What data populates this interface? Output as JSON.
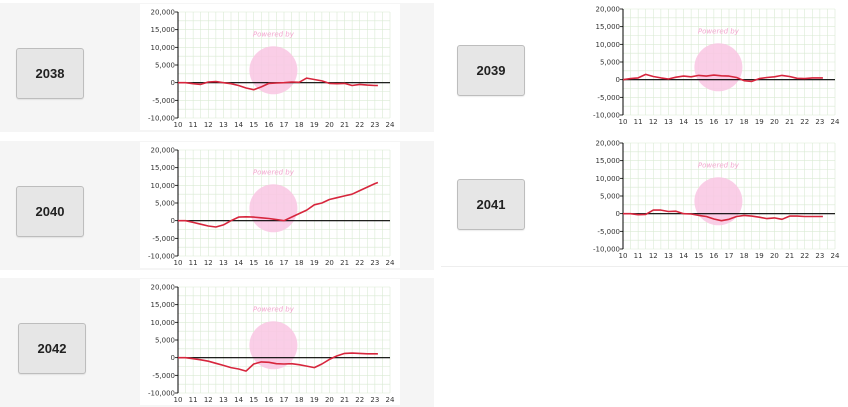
{
  "colors": {
    "line": "#d7263d",
    "grid": "#d9ead3",
    "zero_line": "#000000",
    "watermark": "#f9c6e3"
  },
  "watermark_text": "Powered by",
  "charts": [
    {
      "label": "2038",
      "chart_data": {
        "type": "line",
        "x": [
          10,
          10.5,
          11,
          11.5,
          12,
          12.5,
          13,
          13.5,
          14,
          14.5,
          15,
          15.5,
          16,
          16.5,
          17,
          17.5,
          18,
          18.5,
          19,
          19.5,
          20,
          20.5,
          21,
          21.5,
          22,
          22.5,
          23,
          23.2
        ],
        "values": [
          0,
          0,
          -300,
          -500,
          200,
          300,
          0,
          -300,
          -800,
          -1500,
          -2000,
          -1200,
          -200,
          -100,
          0,
          200,
          100,
          1300,
          900,
          500,
          -200,
          -300,
          -200,
          -800,
          -500,
          -700,
          -800,
          -800
        ],
        "xlim": [
          10,
          24
        ],
        "ylim": [
          -10000,
          20000
        ],
        "xticks": [
          "10",
          "11",
          "12",
          "13",
          "14",
          "15",
          "16",
          "17",
          "18",
          "19",
          "20",
          "21",
          "22",
          "23",
          "24"
        ],
        "yticks": [
          "20,000",
          "15,000",
          "10,000",
          "5,000",
          "0",
          "-5,000",
          "-10,000"
        ]
      }
    },
    {
      "label": "2039",
      "chart_data": {
        "type": "line",
        "x": [
          10,
          10.5,
          11,
          11.5,
          12,
          12.5,
          13,
          13.5,
          14,
          14.5,
          15,
          15.5,
          16,
          16.5,
          17,
          17.5,
          18,
          18.5,
          19,
          19.5,
          20,
          20.5,
          21,
          21.5,
          22,
          22.5,
          23,
          23.2
        ],
        "values": [
          0,
          300,
          500,
          1500,
          900,
          500,
          200,
          700,
          1000,
          800,
          1200,
          1000,
          1300,
          1100,
          1000,
          600,
          -300,
          -500,
          300,
          600,
          800,
          1200,
          900,
          400,
          300,
          500,
          500,
          500
        ],
        "xlim": [
          10,
          24
        ],
        "ylim": [
          -10000,
          20000
        ],
        "xticks": [
          "10",
          "11",
          "12",
          "13",
          "14",
          "15",
          "16",
          "17",
          "18",
          "19",
          "20",
          "21",
          "22",
          "23",
          "24"
        ],
        "yticks": [
          "20,000",
          "15,000",
          "10,000",
          "5,000",
          "0",
          "-5,000",
          "-10,000"
        ]
      }
    },
    {
      "label": "2040",
      "chart_data": {
        "type": "line",
        "x": [
          10,
          10.5,
          11,
          11.5,
          12,
          12.5,
          13,
          13.5,
          14,
          14.5,
          15,
          15.5,
          16,
          16.5,
          17,
          17.5,
          18,
          18.5,
          19,
          19.5,
          20,
          20.5,
          21,
          21.5,
          22,
          22.5,
          23,
          23.2
        ],
        "values": [
          0,
          0,
          -500,
          -1000,
          -1500,
          -1800,
          -1200,
          0,
          1000,
          1100,
          1000,
          800,
          600,
          300,
          0,
          1000,
          2000,
          3000,
          4500,
          5000,
          6000,
          6500,
          7000,
          7500,
          8500,
          9500,
          10500,
          10800
        ],
        "xlim": [
          10,
          24
        ],
        "ylim": [
          -10000,
          20000
        ],
        "xticks": [
          "10",
          "11",
          "12",
          "13",
          "14",
          "15",
          "16",
          "17",
          "18",
          "19",
          "20",
          "21",
          "22",
          "23",
          "24"
        ],
        "yticks": [
          "20,000",
          "15,000",
          "10,000",
          "5,000",
          "0",
          "-5,000",
          "-10,000"
        ]
      }
    },
    {
      "label": "2041",
      "chart_data": {
        "type": "line",
        "x": [
          10,
          10.5,
          11,
          11.5,
          12,
          12.5,
          13,
          13.5,
          14,
          14.5,
          15,
          15.5,
          16,
          16.5,
          17,
          17.5,
          18,
          18.5,
          19,
          19.5,
          20,
          20.5,
          21,
          21.5,
          22,
          22.5,
          23,
          23.2
        ],
        "values": [
          0,
          0,
          -300,
          -200,
          1000,
          1000,
          600,
          700,
          0,
          -100,
          -500,
          -800,
          -1500,
          -2000,
          -1600,
          -800,
          -500,
          -700,
          -1000,
          -1400,
          -1200,
          -1600,
          -700,
          -700,
          -800,
          -800,
          -800,
          -800
        ],
        "xlim": [
          10,
          24
        ],
        "ylim": [
          -10000,
          20000
        ],
        "xticks": [
          "10",
          "11",
          "12",
          "13",
          "14",
          "15",
          "16",
          "17",
          "18",
          "19",
          "20",
          "21",
          "22",
          "23",
          "24"
        ],
        "yticks": [
          "20,000",
          "15,000",
          "10,000",
          "5,000",
          "0",
          "-5,000",
          "-10,000"
        ]
      }
    },
    {
      "label": "2042",
      "chart_data": {
        "type": "line",
        "x": [
          10,
          10.5,
          11,
          11.5,
          12,
          12.5,
          13,
          13.5,
          14,
          14.5,
          15,
          15.5,
          16,
          16.5,
          17,
          17.5,
          18,
          18.5,
          19,
          19.5,
          20,
          20.5,
          21,
          21.5,
          22,
          22.5,
          23,
          23.2
        ],
        "values": [
          0,
          0,
          -300,
          -600,
          -1000,
          -1600,
          -2200,
          -2800,
          -3200,
          -3800,
          -1800,
          -1200,
          -1300,
          -1700,
          -1800,
          -1700,
          -2000,
          -2400,
          -2800,
          -1800,
          -500,
          500,
          1200,
          1300,
          1200,
          1100,
          1100,
          1100
        ],
        "xlim": [
          10,
          24
        ],
        "ylim": [
          -10000,
          20000
        ],
        "xticks": [
          "10",
          "11",
          "12",
          "13",
          "14",
          "15",
          "16",
          "17",
          "18",
          "19",
          "20",
          "21",
          "22",
          "23",
          "24"
        ],
        "yticks": [
          "20,000",
          "15,000",
          "10,000",
          "5,000",
          "0",
          "-5,000",
          "-10,000"
        ]
      }
    }
  ]
}
